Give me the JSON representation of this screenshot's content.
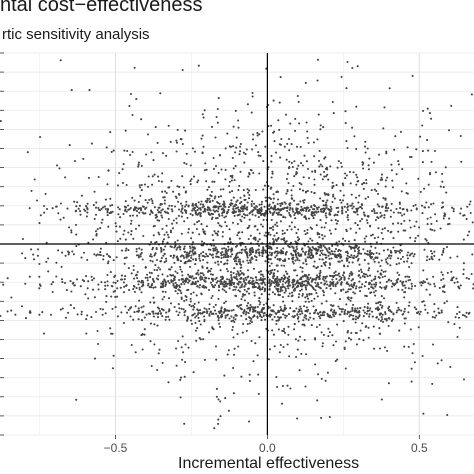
{
  "chart_data": {
    "type": "scatter",
    "title": "ntal cost−effectiveness",
    "subtitle": "rtic sensitivity analysis",
    "xlabel": "Incremental effectiveness",
    "ylabel": "",
    "xlim": [
      -0.88,
      0.68
    ],
    "ylim": [
      -1.0,
      1.0
    ],
    "x_ticks": [
      -0.5,
      0.0,
      0.5
    ],
    "x_tick_labels": [
      "−0.5",
      "0.0",
      "0.5"
    ],
    "reference_lines": {
      "x": 0,
      "y": 0
    },
    "grid": true,
    "point_color": "#444444",
    "n_points": 4000,
    "y_bands": [
      {
        "y": 0.18,
        "weight": 0.12,
        "spread": 0.02
      },
      {
        "y": -0.05,
        "weight": 0.12,
        "spread": 0.025
      },
      {
        "y": -0.2,
        "weight": 0.14,
        "spread": 0.025
      },
      {
        "y": -0.36,
        "weight": 0.1,
        "spread": 0.02
      },
      {
        "y": 0.0,
        "weight": 0.52,
        "spread": 0.33
      }
    ]
  }
}
